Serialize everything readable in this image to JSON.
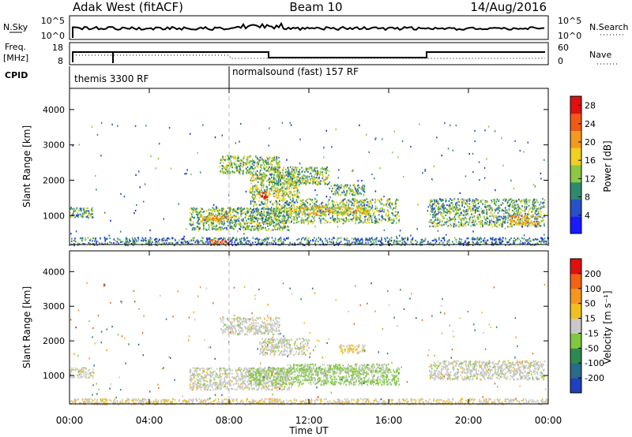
{
  "header": {
    "radar": "Adak West (fitACF)",
    "beam": "Beam 10",
    "date": "14/Aug/2016"
  },
  "noise_panel": {
    "left_label": "N.Sky",
    "right_label": "N.Search",
    "left_ticks": [
      "10^5",
      "10^0"
    ],
    "right_ticks": [
      "10^5",
      "10^0"
    ]
  },
  "freq_panel": {
    "left_label": "Freq.",
    "left_unit": "[MHz]",
    "right_label": "Nave",
    "left_ticks": [
      "18",
      "8"
    ],
    "right_ticks": [
      "60",
      "0"
    ]
  },
  "cpid": {
    "label": "CPID",
    "modes": [
      {
        "name": "themis 3300 RF",
        "start_hour": 0
      },
      {
        "name": "normalsound (fast) 157 RF",
        "start_hour": 8
      }
    ]
  },
  "x_axis": {
    "label": "Time UT",
    "ticks": [
      "00:00",
      "04:00",
      "08:00",
      "12:00",
      "16:00",
      "20:00",
      "00:00"
    ]
  },
  "chart_data": [
    {
      "type": "heatmap",
      "title": "",
      "xlabel": "Time UT",
      "ylabel": "Slant Range [km]",
      "xlim": [
        0,
        24
      ],
      "ylim": [
        180,
        4600
      ],
      "yticks": [
        "1000",
        "2000",
        "3000",
        "4000"
      ],
      "colorbar": {
        "label": "Power [dB]",
        "ticks": [
          "4",
          "8",
          "12",
          "16",
          "20",
          "24",
          "28"
        ],
        "range": [
          0,
          30
        ],
        "colors": [
          "#1a1aff",
          "#2850c8",
          "#2e8a6e",
          "#8cc840",
          "#f0d020",
          "#f59a1e",
          "#f05a14",
          "#e01010"
        ]
      },
      "echo_regions": [
        {
          "t": [
            0.0,
            1.2
          ],
          "r": [
            950,
            1250
          ],
          "level": 11
        },
        {
          "t": [
            6.0,
            11.0
          ],
          "r": [
            600,
            1250
          ],
          "level": 12
        },
        {
          "t": [
            6.5,
            8.0
          ],
          "r": [
            850,
            1050
          ],
          "level": 19
        },
        {
          "t": [
            9.0,
            16.5
          ],
          "r": [
            800,
            1500
          ],
          "level": 12
        },
        {
          "t": [
            11.0,
            15.0
          ],
          "r": [
            1050,
            1300
          ],
          "level": 17
        },
        {
          "t": [
            7.5,
            10.5
          ],
          "r": [
            2200,
            2700
          ],
          "level": 13
        },
        {
          "t": [
            9.0,
            11.5
          ],
          "r": [
            1500,
            2200
          ],
          "level": 14
        },
        {
          "t": [
            10.0,
            13.0
          ],
          "r": [
            1900,
            2400
          ],
          "level": 12
        },
        {
          "t": [
            13.0,
            14.8
          ],
          "r": [
            1600,
            1900
          ],
          "level": 11
        },
        {
          "t": [
            18.0,
            23.8
          ],
          "r": [
            700,
            1500
          ],
          "level": 11
        },
        {
          "t": [
            22.0,
            23.5
          ],
          "r": [
            750,
            1050
          ],
          "level": 20
        },
        {
          "t": [
            0.0,
            24.0
          ],
          "r": [
            180,
            400
          ],
          "level": 8
        },
        {
          "t": [
            7.0,
            8.0
          ],
          "r": [
            180,
            350
          ],
          "level": 24
        },
        {
          "t": [
            9.5,
            9.9
          ],
          "r": [
            1500,
            1700
          ],
          "level": 28
        }
      ]
    },
    {
      "type": "heatmap",
      "title": "",
      "xlabel": "Time UT",
      "ylabel": "Slant Range [km]",
      "xlim": [
        0,
        24
      ],
      "ylim": [
        180,
        4600
      ],
      "yticks": [
        "1000",
        "2000",
        "3000",
        "4000"
      ],
      "colorbar": {
        "label": "Velocity [m s⁻¹]",
        "ticks": [
          "200",
          "100",
          "50",
          "15",
          "-15",
          "-50",
          "-100",
          "-200"
        ],
        "range": [
          -250,
          250
        ],
        "colors": [
          "#2040c0",
          "#2a6a8a",
          "#2e8a4e",
          "#80c840",
          "#c8c8c8",
          "#f0c020",
          "#f5961e",
          "#f06414",
          "#e01010"
        ]
      },
      "echo_regions": [
        {
          "t": [
            0.0,
            1.2
          ],
          "r": [
            950,
            1250
          ],
          "v": 0
        },
        {
          "t": [
            6.0,
            11.0
          ],
          "r": [
            600,
            1250
          ],
          "v": 0
        },
        {
          "t": [
            9.0,
            16.5
          ],
          "r": [
            750,
            1250
          ],
          "v": -40
        },
        {
          "t": [
            11.0,
            16.0
          ],
          "r": [
            1100,
            1350
          ],
          "v": -30
        },
        {
          "t": [
            7.5,
            10.5
          ],
          "r": [
            2200,
            2700
          ],
          "v": 0
        },
        {
          "t": [
            9.5,
            12.0
          ],
          "r": [
            1600,
            2100
          ],
          "v": 0
        },
        {
          "t": [
            13.5,
            14.8
          ],
          "r": [
            1650,
            1900
          ],
          "v": 30
        },
        {
          "t": [
            18.0,
            23.8
          ],
          "r": [
            900,
            1450
          ],
          "v": 0
        },
        {
          "t": [
            0.0,
            24.0
          ],
          "r": [
            180,
            350
          ],
          "v": 20
        }
      ]
    }
  ]
}
